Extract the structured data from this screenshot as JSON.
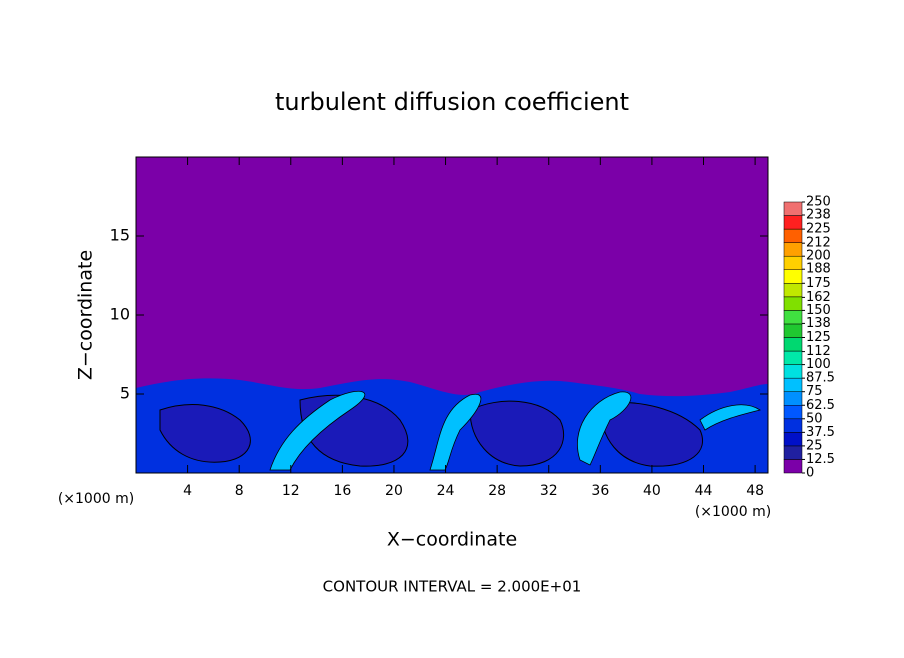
{
  "chart_data": {
    "type": "contour",
    "title": "turbulent diffusion coefficient",
    "xlabel": "X−coordinate",
    "ylabel": "Z−coordinate",
    "x_unit": "(×1000 m)",
    "x_unit_right": "(×1000 m)",
    "footnote": "CONTOUR INTERVAL = 2.000E+01",
    "xlim": [
      0,
      49
    ],
    "xticks": [
      4,
      8,
      12,
      16,
      20,
      24,
      28,
      32,
      36,
      40,
      44,
      48
    ],
    "ylim": [
      0,
      20
    ],
    "yticks": [
      5,
      10,
      15
    ],
    "colorbar": {
      "ticks": [
        0,
        12.5,
        25,
        37.5,
        50,
        62.5,
        75,
        87.5,
        100,
        112,
        125,
        138,
        150,
        162,
        175,
        188,
        200,
        212,
        225,
        238,
        250
      ],
      "colors": [
        "#7b00a8",
        "#2020a0",
        "#0010c8",
        "#0030e0",
        "#0058ff",
        "#0090ff",
        "#00c0ff",
        "#00e0e0",
        "#00e8a8",
        "#00d870",
        "#20c830",
        "#40e040",
        "#80e000",
        "#c0e800",
        "#ffff00",
        "#ffd000",
        "#ffa000",
        "#ff6000",
        "#ff2020",
        "#f07070"
      ]
    }
  }
}
